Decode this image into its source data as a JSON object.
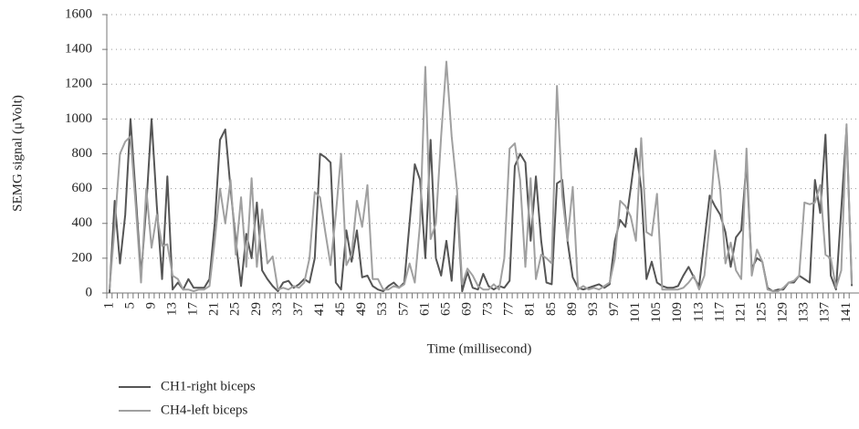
{
  "chart_data": {
    "type": "line",
    "xlabel": "Time (millisecond)",
    "ylabel": "SEMG signal (μVolt)",
    "categories": [
      "1",
      null,
      null,
      null,
      "5",
      null,
      null,
      null,
      "9",
      null,
      null,
      null,
      "13",
      null,
      null,
      null,
      "17",
      null,
      null,
      null,
      "21",
      null,
      null,
      null,
      "25",
      null,
      null,
      null,
      "29",
      null,
      null,
      null,
      "33",
      null,
      null,
      null,
      "37",
      null,
      null,
      null,
      "41",
      null,
      null,
      null,
      "45",
      null,
      null,
      null,
      "49",
      null,
      null,
      null,
      "53",
      null,
      null,
      null,
      "57",
      null,
      null,
      null,
      "61",
      null,
      null,
      null,
      "65",
      null,
      null,
      null,
      "69",
      null,
      null,
      null,
      "73",
      null,
      null,
      null,
      "77",
      null,
      null,
      null,
      "81",
      null,
      null,
      null,
      "85",
      null,
      null,
      null,
      "89",
      null,
      null,
      null,
      "93",
      null,
      null,
      null,
      "97",
      null,
      null,
      null,
      "101",
      null,
      null,
      null,
      "105",
      null,
      null,
      null,
      "109",
      null,
      null,
      null,
      "113",
      null,
      null,
      null,
      "117",
      null,
      null,
      null,
      "121",
      null,
      null,
      null,
      "125",
      null,
      null,
      null,
      "129",
      null,
      null,
      null,
      "133",
      null,
      null,
      null,
      "137",
      null,
      null,
      null,
      "141",
      null
    ],
    "series": [
      {
        "name": "CH1-right biceps",
        "color": "#555555",
        "values": [
          0,
          530,
          170,
          450,
          1000,
          560,
          100,
          500,
          1000,
          500,
          80,
          670,
          20,
          60,
          20,
          80,
          30,
          30,
          30,
          80,
          400,
          880,
          940,
          600,
          300,
          40,
          340,
          200,
          520,
          130,
          80,
          40,
          10,
          60,
          70,
          30,
          50,
          80,
          60,
          200,
          800,
          780,
          750,
          60,
          20,
          360,
          180,
          360,
          90,
          100,
          40,
          20,
          10,
          40,
          60,
          30,
          60,
          400,
          740,
          650,
          200,
          880,
          200,
          100,
          300,
          70,
          560,
          10,
          120,
          30,
          20,
          110,
          40,
          20,
          40,
          30,
          70,
          730,
          800,
          750,
          300,
          670,
          300,
          60,
          50,
          630,
          650,
          300,
          90,
          30,
          20,
          30,
          40,
          50,
          30,
          50,
          300,
          420,
          380,
          600,
          830,
          600,
          80,
          180,
          60,
          40,
          30,
          30,
          40,
          100,
          150,
          90,
          40,
          300,
          560,
          500,
          450,
          350,
          150,
          320,
          360,
          750,
          140,
          200,
          180,
          30,
          10,
          20,
          20,
          60,
          60,
          100,
          80,
          60,
          650,
          460,
          910,
          100,
          20,
          480,
          950,
          40
        ]
      },
      {
        "name": "CH4-left biceps",
        "color": "#a0a0a0",
        "values": [
          20,
          380,
          800,
          870,
          900,
          500,
          60,
          600,
          260,
          450,
          270,
          280,
          100,
          80,
          20,
          20,
          10,
          20,
          20,
          40,
          300,
          600,
          400,
          650,
          220,
          550,
          150,
          660,
          150,
          480,
          170,
          210,
          20,
          30,
          20,
          40,
          30,
          60,
          200,
          580,
          550,
          350,
          160,
          450,
          800,
          160,
          220,
          530,
          380,
          620,
          80,
          80,
          20,
          20,
          40,
          30,
          50,
          170,
          60,
          400,
          1300,
          310,
          400,
          900,
          1330,
          900,
          600,
          50,
          140,
          100,
          40,
          20,
          20,
          50,
          20,
          200,
          830,
          860,
          650,
          150,
          660,
          80,
          220,
          200,
          170,
          1190,
          560,
          300,
          610,
          20,
          40,
          20,
          30,
          20,
          40,
          60,
          200,
          530,
          500,
          440,
          300,
          890,
          350,
          330,
          570,
          20,
          20,
          20,
          20,
          30,
          60,
          100,
          20,
          100,
          400,
          820,
          600,
          170,
          290,
          130,
          80,
          830,
          100,
          250,
          180,
          20,
          10,
          10,
          30,
          60,
          70,
          100,
          520,
          510,
          520,
          620,
          220,
          200,
          30,
          130,
          970,
          50
        ]
      }
    ],
    "ylim": [
      0,
      1600
    ],
    "yticks": [
      0,
      200,
      400,
      600,
      800,
      1000,
      1200,
      1400,
      1600
    ],
    "grid": true
  }
}
